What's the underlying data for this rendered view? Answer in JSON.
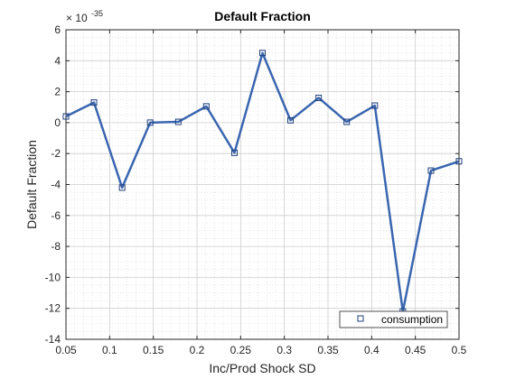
{
  "chart_data": {
    "type": "line",
    "title": "Default Fraction",
    "xlabel": "Inc/Prod Shock SD",
    "ylabel": "Default Fraction",
    "y_exponent_label": "× 10",
    "y_exponent_power": "-35",
    "xlim": [
      0.05,
      0.5
    ],
    "ylim": [
      -14,
      6
    ],
    "x_ticks": [
      0.05,
      0.1,
      0.15,
      0.2,
      0.25,
      0.3,
      0.35,
      0.4,
      0.45,
      0.5
    ],
    "x_tick_labels": [
      "0.05",
      "0.1",
      "0.15",
      "0.2",
      "0.25",
      "0.3",
      "0.35",
      "0.4",
      "0.45",
      "0.5"
    ],
    "y_ticks": [
      -14,
      -12,
      -10,
      -8,
      -6,
      -4,
      -2,
      0,
      2,
      4,
      6
    ],
    "y_tick_labels": [
      "-14",
      "-12",
      "-10",
      "-8",
      "-6",
      "-4",
      "-2",
      "0",
      "2",
      "4",
      "6"
    ],
    "grid": true,
    "minor_grid": true,
    "legend_position": "bottom-right",
    "colors": {
      "series": "#3a66b0",
      "grid": "#d9d9d9",
      "axis": "#262626"
    },
    "series": [
      {
        "name": "consumption",
        "marker": "square",
        "x": [
          0.05,
          0.0821,
          0.1143,
          0.1464,
          0.1786,
          0.2107,
          0.2429,
          0.275,
          0.3071,
          0.3393,
          0.3714,
          0.4036,
          0.4357,
          0.4679,
          0.5
        ],
        "y": [
          0.4,
          1.3,
          -4.2,
          0.0,
          0.05,
          1.05,
          -1.95,
          4.5,
          0.15,
          1.6,
          0.05,
          1.1,
          -12.2,
          -3.1,
          -2.5
        ]
      }
    ]
  }
}
